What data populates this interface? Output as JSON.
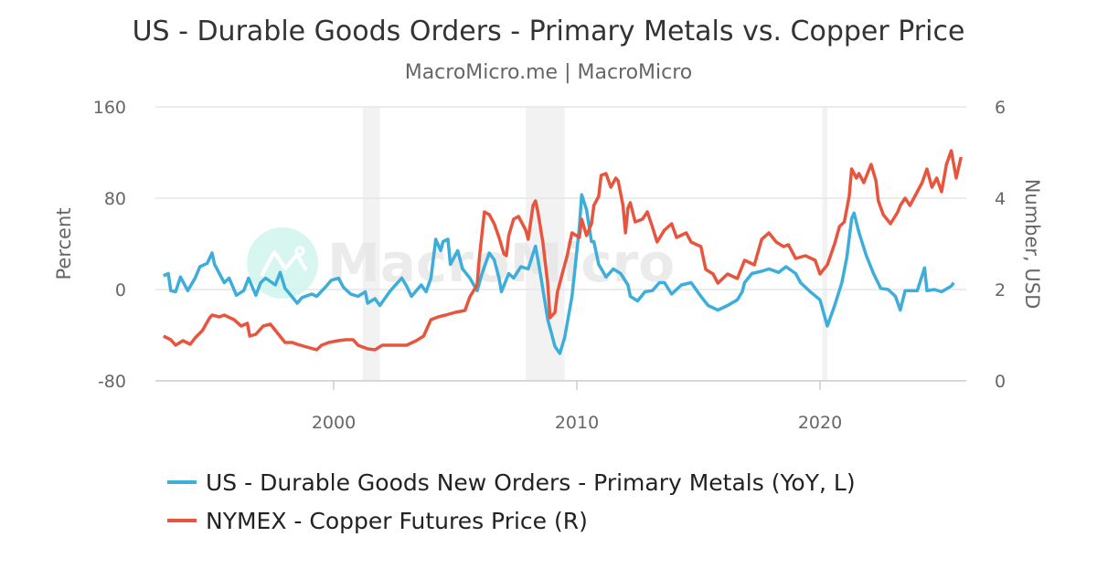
{
  "chart_data": {
    "type": "line",
    "title": "US - Durable Goods Orders - Primary Metals vs. Copper Price",
    "subtitle": "MacroMicro.me | MacroMicro",
    "watermark": "MacroMicro",
    "ylabel_left": "Percent",
    "ylabel_right": "Number, USD",
    "ylim_left": [
      -80,
      160
    ],
    "ylim_right": [
      0,
      6
    ],
    "xlim": [
      1992.75,
      2026.1
    ],
    "yticks_left": [
      "160",
      "80",
      "0",
      "-80"
    ],
    "yticks_left_values": [
      160,
      80,
      0,
      -80
    ],
    "yticks_right": [
      "6",
      "4",
      "2",
      "0"
    ],
    "yticks_right_values": [
      6,
      4,
      2,
      0
    ],
    "xticks": [
      "2000",
      "2010",
      "2020"
    ],
    "xticks_values": [
      2000,
      2010,
      2020
    ],
    "grid": "horizontal",
    "legend_placement": "bottom",
    "recessions": [
      [
        2001.2,
        2001.9
      ],
      [
        2007.9,
        2009.5
      ],
      [
        2020.1,
        2020.3
      ]
    ],
    "colors": {
      "series1": "#3DADD9",
      "series2": "#E8553E",
      "recession": "#F2F2F2",
      "grid": "#E6E6E6"
    },
    "series": [
      {
        "name": "US - Durable Goods New Orders - Primary Metals (YoY, L)",
        "axis": "left",
        "color": "#3DADD9",
        "points": [
          [
            1993.0,
            12
          ],
          [
            1993.2,
            14
          ],
          [
            1993.3,
            -1
          ],
          [
            1993.5,
            -2
          ],
          [
            1993.7,
            11
          ],
          [
            1994.0,
            -1
          ],
          [
            1994.3,
            10
          ],
          [
            1994.5,
            20
          ],
          [
            1994.8,
            23
          ],
          [
            1995.0,
            32
          ],
          [
            1995.1,
            22
          ],
          [
            1995.3,
            14
          ],
          [
            1995.5,
            6
          ],
          [
            1995.7,
            10
          ],
          [
            1996.0,
            -5
          ],
          [
            1996.3,
            -1
          ],
          [
            1996.5,
            10
          ],
          [
            1996.8,
            -5
          ],
          [
            1997.0,
            6
          ],
          [
            1997.2,
            10
          ],
          [
            1997.6,
            4
          ],
          [
            1997.8,
            15
          ],
          [
            1998.0,
            1
          ],
          [
            1998.2,
            -4
          ],
          [
            1998.5,
            -12
          ],
          [
            1998.7,
            -7
          ],
          [
            1999.1,
            -4
          ],
          [
            1999.3,
            -6
          ],
          [
            1999.7,
            3
          ],
          [
            1999.9,
            8
          ],
          [
            2000.2,
            10
          ],
          [
            2000.4,
            2
          ],
          [
            2000.7,
            -4
          ],
          [
            2001.0,
            -6
          ],
          [
            2001.3,
            -2
          ],
          [
            2001.4,
            -12
          ],
          [
            2001.7,
            -8
          ],
          [
            2001.9,
            -14
          ],
          [
            2002.3,
            -2
          ],
          [
            2002.5,
            3
          ],
          [
            2002.8,
            10
          ],
          [
            2003.0,
            3
          ],
          [
            2003.2,
            -6
          ],
          [
            2003.6,
            4
          ],
          [
            2003.8,
            -2
          ],
          [
            2004.0,
            10
          ],
          [
            2004.2,
            44
          ],
          [
            2004.4,
            34
          ],
          [
            2004.5,
            42
          ],
          [
            2004.7,
            44
          ],
          [
            2004.8,
            22
          ],
          [
            2005.1,
            34
          ],
          [
            2005.3,
            18
          ],
          [
            2005.6,
            10
          ],
          [
            2005.9,
            -1
          ],
          [
            2006.1,
            14
          ],
          [
            2006.4,
            32
          ],
          [
            2006.6,
            26
          ],
          [
            2006.8,
            10
          ],
          [
            2006.9,
            -2
          ],
          [
            2007.2,
            14
          ],
          [
            2007.4,
            10
          ],
          [
            2007.7,
            20
          ],
          [
            2008.0,
            18
          ],
          [
            2008.3,
            38
          ],
          [
            2008.5,
            14
          ],
          [
            2008.8,
            -26
          ],
          [
            2009.1,
            -50
          ],
          [
            2009.3,
            -56
          ],
          [
            2009.5,
            -42
          ],
          [
            2009.8,
            -6
          ],
          [
            2010.1,
            54
          ],
          [
            2010.2,
            83
          ],
          [
            2010.4,
            70
          ],
          [
            2010.6,
            42
          ],
          [
            2010.7,
            42
          ],
          [
            2010.9,
            22
          ],
          [
            2011.2,
            11
          ],
          [
            2011.5,
            18
          ],
          [
            2011.8,
            14
          ],
          [
            2012.1,
            4
          ],
          [
            2012.2,
            -6
          ],
          [
            2012.5,
            -10
          ],
          [
            2012.8,
            -2
          ],
          [
            2013.1,
            -1
          ],
          [
            2013.4,
            6
          ],
          [
            2013.6,
            6
          ],
          [
            2013.9,
            -4
          ],
          [
            2014.3,
            4
          ],
          [
            2014.7,
            6
          ],
          [
            2015.1,
            -6
          ],
          [
            2015.4,
            -14
          ],
          [
            2015.8,
            -18
          ],
          [
            2016.2,
            -14
          ],
          [
            2016.6,
            -9
          ],
          [
            2016.8,
            -2
          ],
          [
            2016.9,
            6
          ],
          [
            2017.2,
            14
          ],
          [
            2017.6,
            16
          ],
          [
            2017.9,
            18
          ],
          [
            2018.3,
            15
          ],
          [
            2018.6,
            20
          ],
          [
            2019.0,
            14
          ],
          [
            2019.2,
            6
          ],
          [
            2019.6,
            -2
          ],
          [
            2020.0,
            -9
          ],
          [
            2020.3,
            -32
          ],
          [
            2020.6,
            -14
          ],
          [
            2020.9,
            6
          ],
          [
            2021.1,
            28
          ],
          [
            2021.3,
            62
          ],
          [
            2021.4,
            67
          ],
          [
            2021.6,
            50
          ],
          [
            2021.9,
            30
          ],
          [
            2022.2,
            14
          ],
          [
            2022.5,
            1
          ],
          [
            2022.8,
            0
          ],
          [
            2023.1,
            -6
          ],
          [
            2023.3,
            -18
          ],
          [
            2023.5,
            -1
          ],
          [
            2023.7,
            -1
          ],
          [
            2024.0,
            -1
          ],
          [
            2024.3,
            19
          ],
          [
            2024.4,
            -1
          ],
          [
            2024.7,
            0
          ],
          [
            2025.0,
            -2
          ],
          [
            2025.4,
            3
          ],
          [
            2025.5,
            6
          ]
        ]
      },
      {
        "name": "NYMEX - Copper Futures Price (R)",
        "axis": "right",
        "color": "#E8553E",
        "points": [
          [
            1993.0,
            0.98
          ],
          [
            1993.3,
            0.9
          ],
          [
            1993.5,
            0.78
          ],
          [
            1993.8,
            0.88
          ],
          [
            1994.1,
            0.8
          ],
          [
            1994.3,
            0.94
          ],
          [
            1994.6,
            1.1
          ],
          [
            1994.9,
            1.38
          ],
          [
            1995.0,
            1.44
          ],
          [
            1995.3,
            1.4
          ],
          [
            1995.5,
            1.44
          ],
          [
            1995.9,
            1.34
          ],
          [
            1996.2,
            1.2
          ],
          [
            1996.45,
            1.26
          ],
          [
            1996.55,
            0.98
          ],
          [
            1996.8,
            1.02
          ],
          [
            1997.1,
            1.2
          ],
          [
            1997.4,
            1.24
          ],
          [
            1997.7,
            1.04
          ],
          [
            1998.0,
            0.84
          ],
          [
            1998.3,
            0.84
          ],
          [
            1998.5,
            0.8
          ],
          [
            1998.9,
            0.74
          ],
          [
            1999.3,
            0.68
          ],
          [
            1999.5,
            0.78
          ],
          [
            1999.8,
            0.84
          ],
          [
            2000.2,
            0.88
          ],
          [
            2000.5,
            0.9
          ],
          [
            2000.8,
            0.9
          ],
          [
            2001.0,
            0.78
          ],
          [
            2001.4,
            0.7
          ],
          [
            2001.7,
            0.68
          ],
          [
            2002.0,
            0.78
          ],
          [
            2002.5,
            0.78
          ],
          [
            2003.0,
            0.78
          ],
          [
            2003.4,
            0.88
          ],
          [
            2003.7,
            0.98
          ],
          [
            2004.0,
            1.34
          ],
          [
            2004.3,
            1.4
          ],
          [
            2004.6,
            1.44
          ],
          [
            2005.0,
            1.5
          ],
          [
            2005.4,
            1.54
          ],
          [
            2005.6,
            1.84
          ],
          [
            2005.9,
            2.1
          ],
          [
            2006.0,
            2.74
          ],
          [
            2006.2,
            3.7
          ],
          [
            2006.4,
            3.64
          ],
          [
            2006.6,
            3.44
          ],
          [
            2006.8,
            3.14
          ],
          [
            2007.0,
            2.78
          ],
          [
            2007.1,
            2.74
          ],
          [
            2007.2,
            3.18
          ],
          [
            2007.4,
            3.54
          ],
          [
            2007.6,
            3.6
          ],
          [
            2007.9,
            3.3
          ],
          [
            2008.0,
            3.1
          ],
          [
            2008.2,
            3.84
          ],
          [
            2008.3,
            3.94
          ],
          [
            2008.4,
            3.7
          ],
          [
            2008.6,
            3.04
          ],
          [
            2008.8,
            2.14
          ],
          [
            2008.9,
            1.38
          ],
          [
            2009.1,
            1.5
          ],
          [
            2009.2,
            1.94
          ],
          [
            2009.4,
            2.34
          ],
          [
            2009.6,
            2.74
          ],
          [
            2009.8,
            3.24
          ],
          [
            2010.1,
            3.14
          ],
          [
            2010.2,
            3.54
          ],
          [
            2010.4,
            3.18
          ],
          [
            2010.6,
            3.44
          ],
          [
            2010.7,
            3.84
          ],
          [
            2010.9,
            4.04
          ],
          [
            2011.0,
            4.5
          ],
          [
            2011.2,
            4.54
          ],
          [
            2011.4,
            4.24
          ],
          [
            2011.6,
            4.44
          ],
          [
            2011.7,
            4.38
          ],
          [
            2011.9,
            3.84
          ],
          [
            2012.0,
            3.24
          ],
          [
            2012.1,
            3.78
          ],
          [
            2012.2,
            3.9
          ],
          [
            2012.4,
            3.48
          ],
          [
            2012.7,
            3.54
          ],
          [
            2012.9,
            3.7
          ],
          [
            2013.1,
            3.38
          ],
          [
            2013.3,
            3.04
          ],
          [
            2013.6,
            3.3
          ],
          [
            2013.9,
            3.44
          ],
          [
            2014.1,
            3.14
          ],
          [
            2014.5,
            3.24
          ],
          [
            2014.7,
            3.04
          ],
          [
            2015.1,
            2.94
          ],
          [
            2015.3,
            2.44
          ],
          [
            2015.6,
            2.34
          ],
          [
            2015.8,
            2.14
          ],
          [
            2016.2,
            2.34
          ],
          [
            2016.6,
            2.24
          ],
          [
            2016.9,
            2.64
          ],
          [
            2017.3,
            2.54
          ],
          [
            2017.6,
            3.1
          ],
          [
            2017.9,
            3.24
          ],
          [
            2018.2,
            3.04
          ],
          [
            2018.5,
            2.94
          ],
          [
            2018.7,
            2.98
          ],
          [
            2019.0,
            2.68
          ],
          [
            2019.4,
            2.74
          ],
          [
            2019.8,
            2.64
          ],
          [
            2020.0,
            2.34
          ],
          [
            2020.3,
            2.54
          ],
          [
            2020.6,
            3.0
          ],
          [
            2020.8,
            3.38
          ],
          [
            2021.0,
            3.48
          ],
          [
            2021.2,
            4.04
          ],
          [
            2021.3,
            4.64
          ],
          [
            2021.5,
            4.44
          ],
          [
            2021.6,
            4.54
          ],
          [
            2021.8,
            4.34
          ],
          [
            2022.1,
            4.74
          ],
          [
            2022.3,
            4.38
          ],
          [
            2022.4,
            3.94
          ],
          [
            2022.6,
            3.64
          ],
          [
            2022.9,
            3.44
          ],
          [
            2023.2,
            3.7
          ],
          [
            2023.3,
            3.84
          ],
          [
            2023.5,
            4.0
          ],
          [
            2023.7,
            3.84
          ],
          [
            2023.9,
            4.04
          ],
          [
            2024.2,
            4.34
          ],
          [
            2024.4,
            4.64
          ],
          [
            2024.6,
            4.24
          ],
          [
            2024.8,
            4.44
          ],
          [
            2025.0,
            4.14
          ],
          [
            2025.2,
            4.74
          ],
          [
            2025.4,
            5.04
          ],
          [
            2025.6,
            4.44
          ],
          [
            2025.8,
            4.9
          ]
        ]
      }
    ]
  }
}
